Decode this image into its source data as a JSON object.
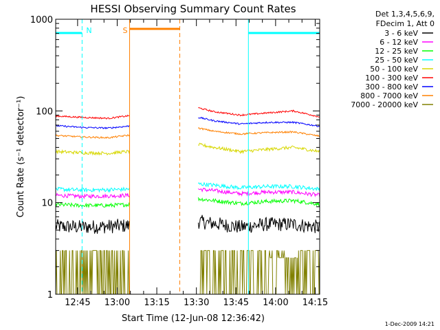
{
  "chart_data": {
    "type": "line",
    "title": "HESSI Observing Summary Count Rates",
    "xlabel": "Start Time (12-Jun-08 12:36:42)",
    "ylabel": "Count Rate (s⁻¹ detector⁻¹)",
    "x_unit": "minutes after 12:36:42",
    "xlim": [
      0,
      100
    ],
    "ylim": [
      1,
      1000
    ],
    "y_scale": "log",
    "x_ticks": [
      "12:45",
      "13:00",
      "13:15",
      "13:30",
      "13:45",
      "14:00",
      "14:15"
    ],
    "y_ticks": [
      "1",
      "10",
      "100",
      "1000"
    ],
    "legend_header": [
      "Det 1,3,4,5,6,9,",
      "FDecim 1, Att 0"
    ],
    "legend_placement": "right",
    "footer_date": "1-Dec-2009 14:21",
    "gaps": [
      [
        28,
        54
      ]
    ],
    "series": [
      {
        "name": "3 - 6 keV",
        "color": "#000000",
        "x": [
          0,
          10,
          20,
          27,
          54,
          60,
          70,
          80,
          90,
          100
        ],
        "y": [
          5.5,
          5.4,
          5.5,
          5.6,
          6.2,
          5.9,
          5.4,
          5.8,
          5.8,
          5.4
        ],
        "noise": 0.18
      },
      {
        "name": "6 - 12 keV",
        "color": "#ff00ff",
        "x": [
          0,
          10,
          20,
          27,
          54,
          60,
          70,
          80,
          90,
          100
        ],
        "y": [
          12,
          11.7,
          11.8,
          12,
          14,
          13.5,
          12.5,
          13,
          13,
          12
        ],
        "noise": 0.05
      },
      {
        "name": "12 - 25 keV",
        "color": "#00ff00",
        "x": [
          0,
          10,
          20,
          27,
          54,
          60,
          70,
          80,
          90,
          100
        ],
        "y": [
          9.5,
          9.3,
          9.3,
          9.5,
          11,
          10.5,
          9.8,
          10.3,
          10.5,
          9.6
        ],
        "noise": 0.05
      },
      {
        "name": "25 - 50 keV",
        "color": "#00ffff",
        "x": [
          0,
          10,
          20,
          27,
          54,
          60,
          70,
          80,
          90,
          100
        ],
        "y": [
          14,
          13.7,
          13.8,
          14,
          16,
          15.5,
          14.5,
          15,
          15,
          14
        ],
        "noise": 0.05
      },
      {
        "name": "50 - 100 keV",
        "color": "#d7d700",
        "x": [
          0,
          10,
          20,
          27,
          54,
          60,
          70,
          80,
          90,
          100
        ],
        "y": [
          36,
          35,
          34.5,
          36,
          43,
          40,
          36,
          38,
          40,
          36
        ],
        "noise": 0.04
      },
      {
        "name": "100 - 300 keV",
        "color": "#ff0000",
        "x": [
          0,
          10,
          20,
          27,
          54,
          60,
          70,
          80,
          90,
          100
        ],
        "y": [
          88,
          85,
          83,
          88,
          108,
          98,
          90,
          95,
          100,
          86
        ],
        "noise": 0.02
      },
      {
        "name": "300 - 800 keV",
        "color": "#0000ff",
        "x": [
          0,
          10,
          20,
          27,
          54,
          60,
          70,
          80,
          90,
          100
        ],
        "y": [
          69,
          66,
          65,
          68,
          85,
          78,
          72,
          75,
          75,
          68
        ],
        "noise": 0.02
      },
      {
        "name": "800 - 7000 keV",
        "color": "#ff8000",
        "x": [
          0,
          10,
          20,
          27,
          54,
          60,
          70,
          80,
          90,
          100
        ],
        "y": [
          54,
          52,
          51,
          54,
          65,
          60,
          56,
          58,
          59,
          53
        ],
        "noise": 0.02
      },
      {
        "name": "7000 - 20000 keV",
        "color": "#808000",
        "x": [
          0,
          10,
          20,
          27,
          54,
          60,
          70,
          80,
          90,
          100
        ],
        "y": [
          2,
          2,
          2,
          2,
          2,
          2,
          2,
          2,
          2.5,
          2
        ],
        "noise": 0,
        "binary": [
          1,
          3
        ]
      }
    ],
    "sunlight_intervals": [
      [
        0,
        10
      ],
      [
        73,
        100
      ]
    ],
    "saa_intervals": [
      [
        28,
        47
      ]
    ],
    "markers": [
      {
        "label": "N",
        "x": 10,
        "color": "#00ffff",
        "style": "dashed"
      },
      {
        "label": "",
        "x": 73,
        "color": "#00ffff",
        "style": "solid"
      },
      {
        "label": "",
        "x": 100,
        "color": "#00ffff",
        "style": "dashed"
      },
      {
        "label": "S",
        "x": 28,
        "color": "#ff8000",
        "style": "solid"
      },
      {
        "label": "",
        "x": 47,
        "color": "#ff8000",
        "style": "dashed"
      }
    ]
  }
}
